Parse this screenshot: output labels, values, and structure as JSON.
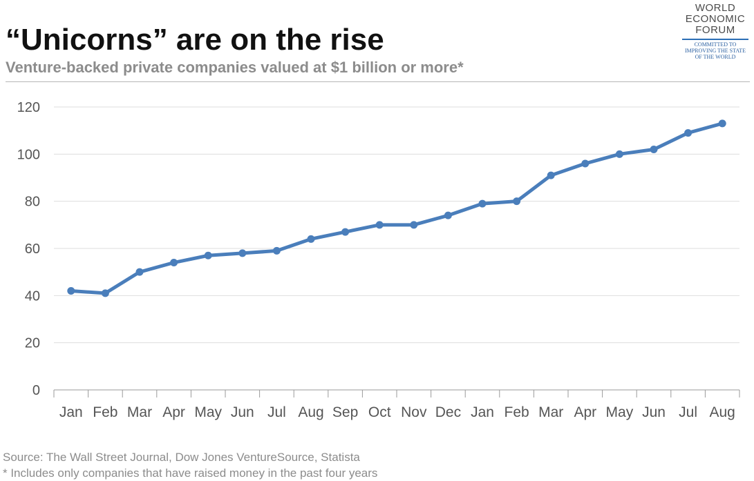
{
  "logo": {
    "lines": [
      "WORLD",
      "ECONOMIC",
      "FORUM"
    ],
    "tagline": [
      "COMMITTED TO",
      "IMPROVING THE STATE",
      "OF THE WORLD"
    ]
  },
  "chart_data": {
    "type": "line",
    "title": "“Unicorns” are on the rise",
    "subtitle": "Venture-backed private companies valued at $1 billion or more*",
    "categories": [
      "Jan",
      "Feb",
      "Mar",
      "Apr",
      "May",
      "Jun",
      "Jul",
      "Aug",
      "Sep",
      "Oct",
      "Nov",
      "Dec",
      "Jan",
      "Feb",
      "Mar",
      "Apr",
      "May",
      "Jun",
      "Jul",
      "Aug"
    ],
    "series": [
      {
        "name": "Unicorns",
        "values": [
          42,
          41,
          50,
          54,
          57,
          58,
          59,
          64,
          67,
          70,
          70,
          74,
          79,
          80,
          91,
          96,
          100,
          102,
          109,
          113
        ]
      }
    ],
    "ylim": [
      0,
      120
    ],
    "yticks": [
      0,
      20,
      40,
      60,
      80,
      100,
      120
    ],
    "xlabel": "",
    "ylabel": "",
    "grid": true,
    "line_color": "#4a7ebb"
  },
  "footer": {
    "source": "Source: The Wall Street Journal, Dow Jones VentureSource, Statista",
    "note": "* Includes only companies that have raised money in the past four years"
  }
}
